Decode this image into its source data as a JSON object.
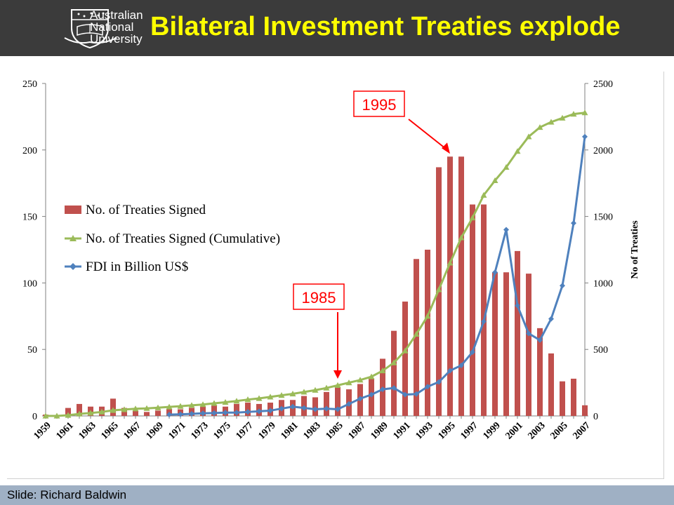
{
  "header": {
    "logo_lines": [
      "Australian",
      "National",
      "University"
    ],
    "title": "Bilateral Investment Treaties explode"
  },
  "footer": {
    "credit": "Slide: Richard Baldwin"
  },
  "colors": {
    "bars": "#c0504d",
    "cumulative": "#9bbb59",
    "fdi": "#4f81bd",
    "annotation": "#ff0000",
    "header_bg": "#3b3b3b",
    "title": "#ffff00",
    "footer_bg": "#9fb0c4"
  },
  "chart_data": {
    "type": "bar",
    "x": [
      1959,
      1960,
      1961,
      1962,
      1963,
      1964,
      1965,
      1966,
      1967,
      1968,
      1969,
      1970,
      1971,
      1972,
      1973,
      1974,
      1975,
      1976,
      1977,
      1978,
      1979,
      1980,
      1981,
      1982,
      1983,
      1984,
      1985,
      1986,
      1987,
      1988,
      1989,
      1990,
      1991,
      1992,
      1993,
      1994,
      1995,
      1996,
      1997,
      1998,
      1999,
      2000,
      2001,
      2002,
      2003,
      2004,
      2005,
      2006,
      2007
    ],
    "x_tick_labels": [
      "1959",
      "1961",
      "1963",
      "1965",
      "1967",
      "1969",
      "1971",
      "1973",
      "1975",
      "1977",
      "1979",
      "1981",
      "1983",
      "1985",
      "1987",
      "1989",
      "1991",
      "1993",
      "1995",
      "1997",
      "1999",
      "2001",
      "2003",
      "2005",
      "2007"
    ],
    "series": [
      {
        "name": "No. of Treaties Signed",
        "kind": "bar",
        "axis": "left",
        "values": [
          1,
          0,
          6,
          9,
          7,
          7,
          13,
          6,
          4,
          3,
          4,
          5,
          5,
          6,
          7,
          8,
          7,
          9,
          10,
          9,
          10,
          12,
          12,
          15,
          14,
          18,
          22,
          20,
          24,
          28,
          43,
          64,
          86,
          118,
          125,
          187,
          195,
          195,
          159,
          159,
          108,
          108,
          124,
          107,
          66,
          47,
          26,
          28,
          8
        ]
      },
      {
        "name": "No. of Treaties Signed (Cumulative)",
        "kind": "line",
        "axis": "right",
        "values": [
          0,
          0,
          5,
          15,
          22,
          30,
          42,
          48,
          54,
          57,
          62,
          68,
          73,
          80,
          86,
          95,
          103,
          112,
          123,
          132,
          143,
          155,
          166,
          180,
          194,
          210,
          230,
          250,
          270,
          295,
          340,
          400,
          490,
          615,
          750,
          950,
          1150,
          1340,
          1490,
          1660,
          1770,
          1870,
          1990,
          2100,
          2170,
          2210,
          2240,
          2270,
          2280
        ]
      },
      {
        "name": "FDI in Billion US$",
        "kind": "line",
        "axis": "right",
        "values": [
          null,
          null,
          null,
          null,
          null,
          null,
          null,
          null,
          null,
          null,
          null,
          10,
          12,
          16,
          20,
          22,
          25,
          25,
          30,
          35,
          40,
          55,
          70,
          60,
          50,
          55,
          50,
          90,
          130,
          160,
          200,
          210,
          160,
          165,
          220,
          255,
          340,
          380,
          480,
          710,
          1080,
          1400,
          830,
          620,
          570,
          730,
          980,
          1450,
          2100
        ]
      }
    ],
    "annotations": [
      {
        "label": "1995",
        "year": 1995
      },
      {
        "label": "1985",
        "year": 1985
      }
    ],
    "ylim_left": [
      0,
      250
    ],
    "ylim_right": [
      0,
      2500
    ],
    "left_ticks": [
      "0",
      "50",
      "100",
      "150",
      "200",
      "250"
    ],
    "right_ticks": [
      "0",
      "500",
      "1000",
      "1500",
      "2000",
      "2500"
    ],
    "ylabel_right": "No of Treaties",
    "xlabel": "",
    "legend": "left-middle",
    "grid": false
  }
}
